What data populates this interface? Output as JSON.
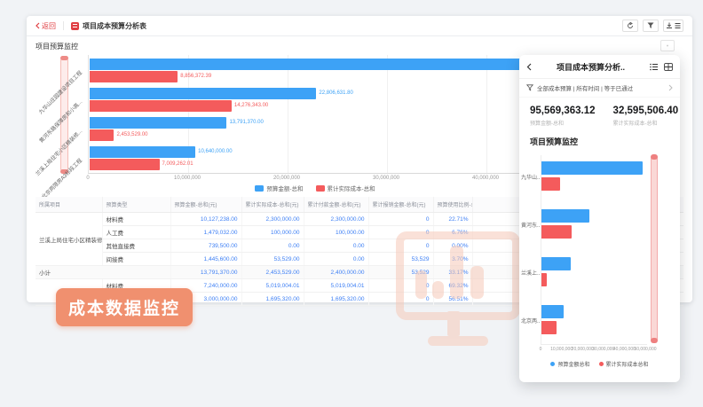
{
  "window": {
    "back_label": "返回",
    "title": "项目成本预算分析表",
    "section_title": "项目预算监控"
  },
  "badge": {
    "label": "成本数据监控",
    "color": "#f0906f"
  },
  "colors": {
    "blue": "#3da2f6",
    "red": "#f45b5c",
    "accent_red": "#e03e42",
    "value_blue": "#3d7ff5"
  },
  "main_chart": {
    "type": "bar",
    "orientation": "horizontal",
    "categories": [
      "九华山庄园建设项目工程",
      "黄河东路保障房和小高...",
      "兰溪上局住宅小区精装修...",
      "北京两限房A3标段工程"
    ],
    "series": [
      {
        "name": "预算金额-总和",
        "color": "#3da2f6",
        "values": [
          48331361.32,
          22806631.8,
          13791370.0,
          10640000.0
        ],
        "labels": [
          "",
          "22,806,631.80",
          "13,791,370.00",
          "10,640,000.00"
        ]
      },
      {
        "name": "累计实际成本-总和",
        "color": "#f45b5c",
        "values": [
          8856372.39,
          14276343.0,
          2453529.0,
          7009262.01
        ],
        "labels": [
          "8,856,372.39",
          "14,276,343.00",
          "2,453,529.00",
          "7,009,262.01"
        ]
      }
    ],
    "x_ticks": [
      "0",
      "10,000,000",
      "20,000,000",
      "30,000,000",
      "40,000,000"
    ],
    "tick_step": 10000000,
    "xlim": [
      0,
      45000000
    ],
    "grid": true,
    "legend_position": "bottom"
  },
  "table": {
    "headers": [
      "所属项目",
      "预算类型",
      "预算金额-总和(元)",
      "累计实际成本-总和(元)",
      "累计付款金额-总和(元)",
      "累计报销金额-总和(元)",
      "预算使用比例-总和(%)",
      ""
    ],
    "rows": [
      {
        "cells": [
          {
            "t": "兰溪上局住宅小区精装修第...",
            "rs": 4,
            "c": "proj"
          },
          {
            "t": "材料费",
            "c": "type"
          },
          {
            "t": "10,127,238.00",
            "c": "num"
          },
          {
            "t": "2,300,000.00",
            "c": "num"
          },
          {
            "t": "2,300,000.00",
            "c": "num"
          },
          {
            "t": "0",
            "c": "num"
          },
          {
            "t": "22.71%",
            "c": "num"
          },
          {
            "t": "",
            "c": "fill"
          }
        ]
      },
      {
        "cells": [
          {
            "t": "人工费",
            "c": "type"
          },
          {
            "t": "1,479,032.00",
            "c": "num"
          },
          {
            "t": "100,000.00",
            "c": "num"
          },
          {
            "t": "100,000.00",
            "c": "num"
          },
          {
            "t": "0",
            "c": "num"
          },
          {
            "t": "6.76%",
            "c": "num"
          },
          {
            "t": "",
            "c": "fill"
          }
        ]
      },
      {
        "cells": [
          {
            "t": "其他直接费",
            "c": "type"
          },
          {
            "t": "739,500.00",
            "c": "num"
          },
          {
            "t": "0.00",
            "c": "num"
          },
          {
            "t": "0.00",
            "c": "num"
          },
          {
            "t": "0",
            "c": "num"
          },
          {
            "t": "0.00%",
            "c": "num"
          },
          {
            "t": "",
            "c": "fill"
          }
        ]
      },
      {
        "cells": [
          {
            "t": "间接费",
            "c": "type"
          },
          {
            "t": "1,445,600.00",
            "c": "num"
          },
          {
            "t": "53,529.00",
            "c": "num"
          },
          {
            "t": "0.00",
            "c": "num"
          },
          {
            "t": "53,529",
            "c": "num"
          },
          {
            "t": "3.70%",
            "c": "num"
          },
          {
            "t": "",
            "c": "fill"
          }
        ]
      },
      {
        "row_cls": "sub",
        "cells": [
          {
            "t": "小计",
            "cs": 2,
            "c": "proj"
          },
          {
            "t": "13,791,370.00",
            "c": "num"
          },
          {
            "t": "2,453,529.00",
            "c": "num"
          },
          {
            "t": "2,400,000.00",
            "c": "num"
          },
          {
            "t": "53,529",
            "c": "num"
          },
          {
            "t": "33.17%",
            "c": "num"
          },
          {
            "t": "",
            "c": "fill"
          }
        ]
      },
      {
        "cells": [
          {
            "t": "",
            "rs": 2,
            "c": "proj"
          },
          {
            "t": "材料费",
            "c": "type"
          },
          {
            "t": "7,240,000.00",
            "c": "num"
          },
          {
            "t": "5,019,004.01",
            "c": "num"
          },
          {
            "t": "5,019,004.01",
            "c": "num"
          },
          {
            "t": "0",
            "c": "num"
          },
          {
            "t": "69.32%",
            "c": "num"
          },
          {
            "t": "",
            "c": "fill"
          }
        ]
      },
      {
        "cells": [
          {
            "t": "人工费",
            "c": "type"
          },
          {
            "t": "3,000,000.00",
            "c": "num"
          },
          {
            "t": "1,695,320.00",
            "c": "num"
          },
          {
            "t": "1,695,320.00",
            "c": "num"
          },
          {
            "t": "0",
            "c": "num"
          },
          {
            "t": "56.51%",
            "c": "num"
          },
          {
            "t": "",
            "c": "fill"
          }
        ]
      }
    ]
  },
  "panel": {
    "title": "项目成本预算分析..",
    "filter_text": "全部成本预算 | 所有时间 | 等于已通过",
    "stats": [
      {
        "value": "95,569,363.12",
        "label": "预算金额-总和"
      },
      {
        "value": "32,595,506.40",
        "label": "累计实际成本-总和"
      }
    ],
    "section_title": "项目预算监控",
    "chart": {
      "type": "bar",
      "orientation": "horizontal",
      "categories": [
        "九华山..",
        "黄河东..",
        "兰溪上..",
        "北京两.."
      ],
      "series": [
        {
          "name": "预算金额总和",
          "color": "#3da2f6",
          "values": [
            48331361.32,
            22806631.8,
            13791370.0,
            10640000.0
          ]
        },
        {
          "name": "累计实际成本总和",
          "color": "#f45b5c",
          "values": [
            8856372.39,
            14276343.0,
            2453529.0,
            7009262.01
          ]
        }
      ],
      "x_ticks": [
        "0",
        "10,000,000",
        "20,000,000",
        "30,000,000",
        "40,000,000",
        "50,000,000"
      ],
      "xlim": [
        0,
        50000000
      ],
      "legend_position": "bottom"
    }
  }
}
